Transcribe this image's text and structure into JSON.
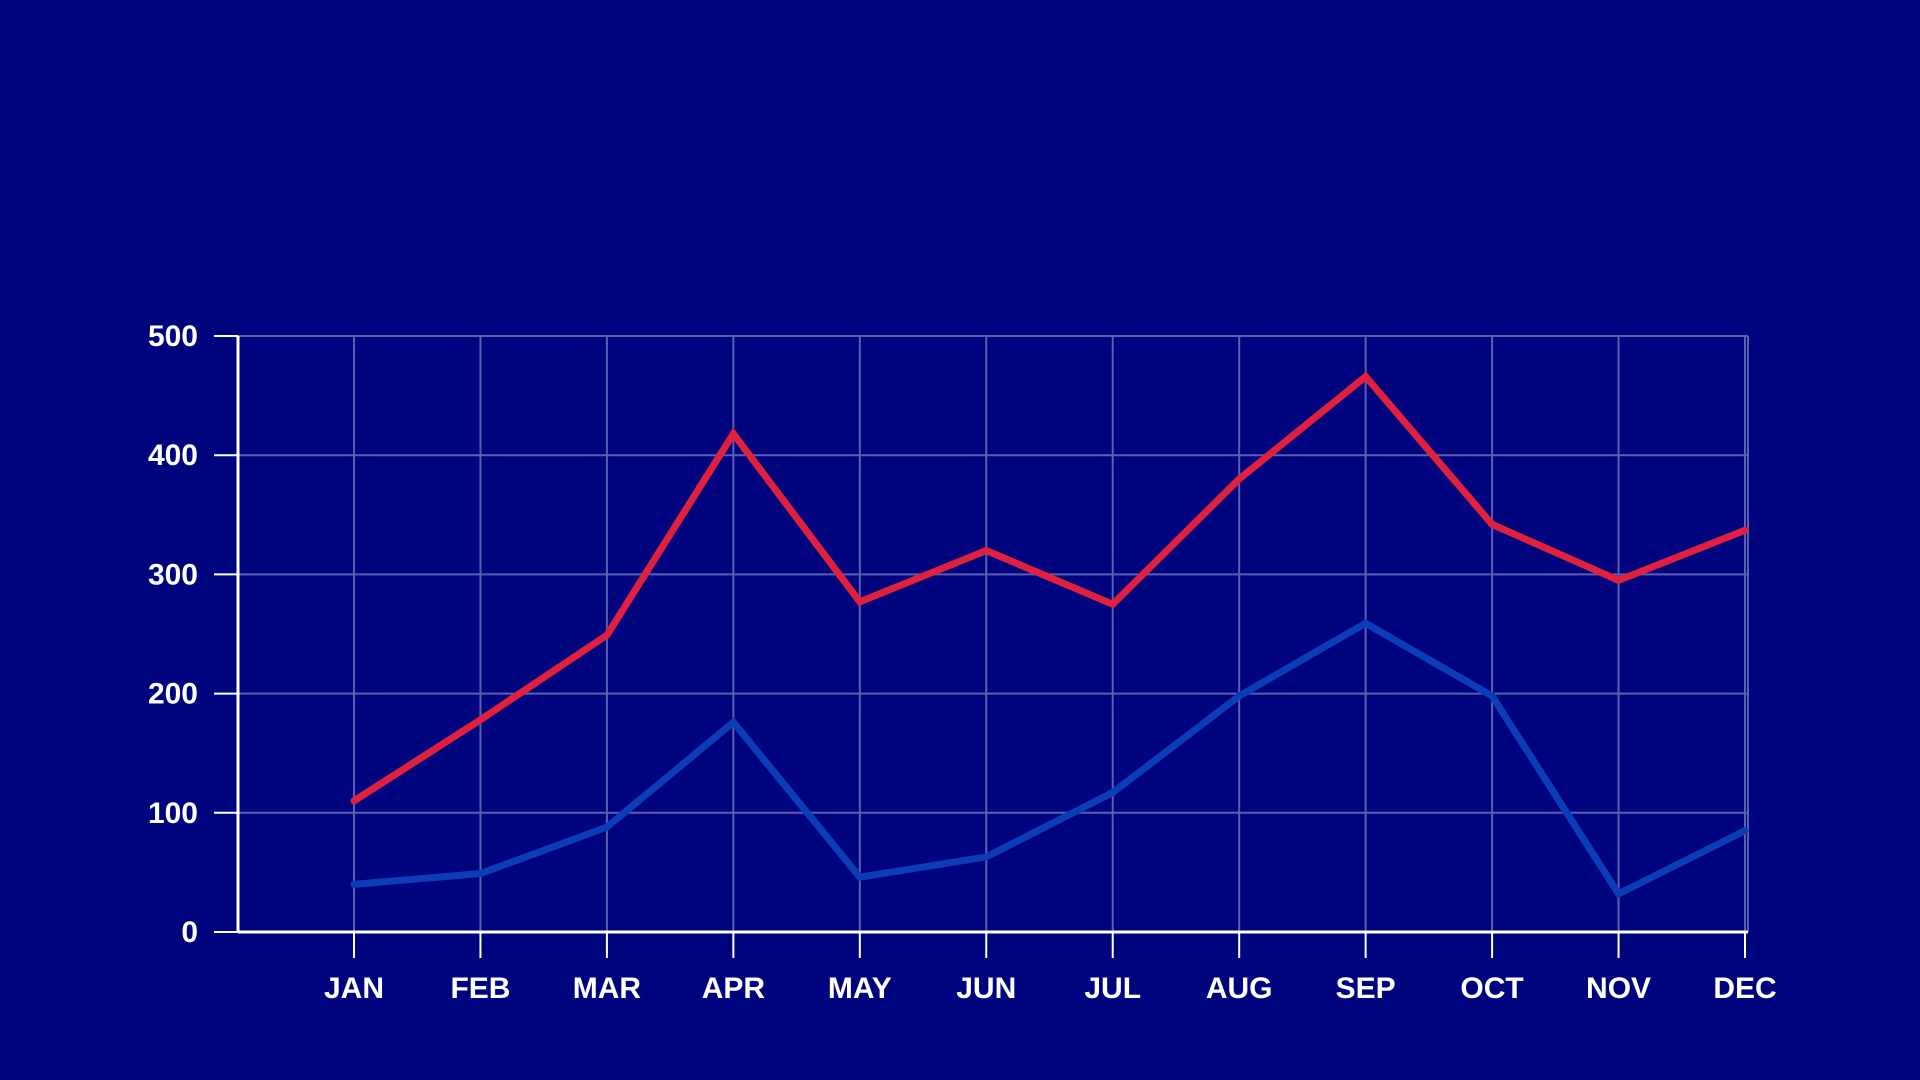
{
  "colors": {
    "background": "#00037E",
    "grid": "#5A5FB0",
    "axis": "#FFFFFF",
    "text": "#FFFFFF"
  },
  "chart_data": {
    "type": "line",
    "title": "",
    "xlabel": "",
    "ylabel": "",
    "categories": [
      "JAN",
      "FEB",
      "MAR",
      "APR",
      "MAY",
      "JUN",
      "JUL",
      "AUG",
      "SEP",
      "OCT",
      "NOV",
      "DEC"
    ],
    "ylim": [
      0,
      500
    ],
    "yticks": [
      0,
      100,
      200,
      300,
      400,
      500
    ],
    "grid": true,
    "legend": "none",
    "series": [
      {
        "color": "#E0203C",
        "values": [
          110,
          178,
          249,
          418,
          277,
          320,
          275,
          380,
          466,
          342,
          295,
          337
        ]
      },
      {
        "color": "#0B3DB8",
        "values": [
          40,
          49,
          88,
          176,
          46,
          63,
          117,
          198,
          259,
          198,
          32,
          85
        ]
      }
    ]
  }
}
